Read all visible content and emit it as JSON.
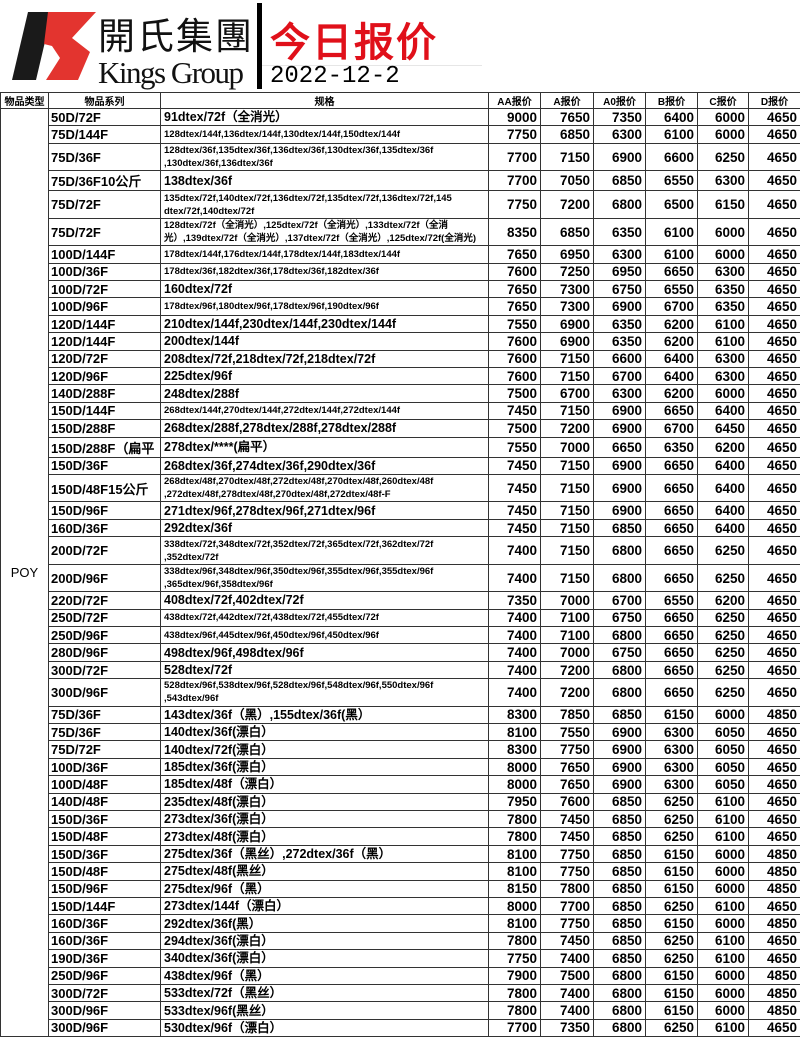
{
  "header": {
    "company_cn": "開氏集團",
    "company_en": "Kings Group",
    "title": "今日报价",
    "date": "2022-12-2",
    "logo_colors": {
      "black": "#1a1a1a",
      "red": "#e3342f"
    },
    "title_color": "#e0101a"
  },
  "table": {
    "columns": [
      "物品类型",
      "物品系列",
      "规格",
      "AA报价",
      "A报价",
      "A0报价",
      "B报价",
      "C报价",
      "D报价"
    ],
    "type": "POY",
    "rows": [
      {
        "series": "50D/72F",
        "spec": [
          "91dtex/72f（全消光）"
        ],
        "prices": [
          "9000",
          "7650",
          "7350",
          "6400",
          "6000",
          "4650"
        ]
      },
      {
        "series": "75D/144F",
        "spec": [
          "128dtex/144f,136dtex/144f,130dtex/144f,150dtex/144f"
        ],
        "prices": [
          "7750",
          "6850",
          "6300",
          "6100",
          "6000",
          "4650"
        ]
      },
      {
        "series": "75D/36F",
        "spec": [
          "128dtex/36f,135dtex/36f,136dtex/36f,130dtex/36f,135dtex/36f",
          ",130dtex/36f,136dtex/36f"
        ],
        "prices": [
          "7700",
          "7150",
          "6900",
          "6600",
          "6250",
          "4650"
        ]
      },
      {
        "series": "75D/36F10公斤",
        "spec": [
          "138dtex/36f"
        ],
        "prices": [
          "7700",
          "7050",
          "6850",
          "6550",
          "6300",
          "4650"
        ]
      },
      {
        "series": "75D/72F",
        "spec": [
          "135dtex/72f,140dtex/72f,136dtex/72f,135dtex/72f,136dtex/72f,145",
          "dtex/72f,140dtex/72f"
        ],
        "prices": [
          "7750",
          "7200",
          "6800",
          "6500",
          "6150",
          "4650"
        ]
      },
      {
        "series": "75D/72F",
        "spec": [
          "128dtex/72f（全消光）,125dtex/72f（全消光）,133dtex/72f（全消",
          "光）,139dtex/72f（全消光）,137dtex/72f（全消光）,125dtex/72f(全消光)"
        ],
        "prices": [
          "8350",
          "6850",
          "6350",
          "6100",
          "6000",
          "4650"
        ]
      },
      {
        "series": "100D/144F",
        "spec": [
          "178dtex/144f,176dtex/144f,178dtex/144f,183dtex/144f"
        ],
        "prices": [
          "7650",
          "6950",
          "6300",
          "6100",
          "6000",
          "4650"
        ]
      },
      {
        "series": "100D/36F",
        "spec": [
          "178dtex/36f,182dtex/36f,178dtex/36f,182dtex/36f"
        ],
        "prices": [
          "7600",
          "7250",
          "6950",
          "6650",
          "6300",
          "4650"
        ]
      },
      {
        "series": "100D/72F",
        "spec": [
          "160dtex/72f"
        ],
        "prices": [
          "7650",
          "7300",
          "6750",
          "6550",
          "6350",
          "4650"
        ]
      },
      {
        "series": "100D/96F",
        "spec": [
          "178dtex/96f,180dtex/96f,178dtex/96f,190dtex/96f"
        ],
        "prices": [
          "7650",
          "7300",
          "6900",
          "6700",
          "6350",
          "4650"
        ]
      },
      {
        "series": "120D/144F",
        "spec": [
          "210dtex/144f,230dtex/144f,230dtex/144f"
        ],
        "prices": [
          "7550",
          "6900",
          "6350",
          "6200",
          "6100",
          "4650"
        ]
      },
      {
        "series": "120D/144F",
        "spec": [
          "200dtex/144f"
        ],
        "prices": [
          "7600",
          "6900",
          "6350",
          "6200",
          "6100",
          "4650"
        ]
      },
      {
        "series": "120D/72F",
        "spec": [
          "208dtex/72f,218dtex/72f,218dtex/72f"
        ],
        "prices": [
          "7600",
          "7150",
          "6600",
          "6400",
          "6300",
          "4650"
        ]
      },
      {
        "series": "120D/96F",
        "spec": [
          "225dtex/96f"
        ],
        "prices": [
          "7600",
          "7150",
          "6700",
          "6400",
          "6300",
          "4650"
        ]
      },
      {
        "series": "140D/288F",
        "spec": [
          "248dtex/288f"
        ],
        "prices": [
          "7500",
          "6700",
          "6300",
          "6200",
          "6000",
          "4650"
        ]
      },
      {
        "series": "150D/144F",
        "spec": [
          "268dtex/144f,270dtex/144f,272dtex/144f,272dtex/144f"
        ],
        "prices": [
          "7450",
          "7150",
          "6900",
          "6650",
          "6400",
          "4650"
        ]
      },
      {
        "series": "150D/288F",
        "spec": [
          "268dtex/288f,278dtex/288f,278dtex/288f"
        ],
        "prices": [
          "7500",
          "7200",
          "6900",
          "6700",
          "6450",
          "4650"
        ]
      },
      {
        "series": "150D/288F（扁平",
        "spec": [
          "278dtex/****(扁平）"
        ],
        "prices": [
          "7550",
          "7000",
          "6650",
          "6350",
          "6200",
          "4650"
        ]
      },
      {
        "series": "150D/36F",
        "spec": [
          "268dtex/36f,274dtex/36f,290dtex/36f"
        ],
        "prices": [
          "7450",
          "7150",
          "6900",
          "6650",
          "6400",
          "4650"
        ]
      },
      {
        "series": "150D/48F15公斤",
        "spec": [
          "268dtex/48f,270dtex/48f,272dtex/48f,270dtex/48f,260dtex/48f",
          ",272dtex/48f,278dtex/48f,270dtex/48f,272dtex/48f-F"
        ],
        "prices": [
          "7450",
          "7150",
          "6900",
          "6650",
          "6400",
          "4650"
        ]
      },
      {
        "series": "150D/96F",
        "spec": [
          "271dtex/96f,278dtex/96f,271dtex/96f"
        ],
        "prices": [
          "7450",
          "7150",
          "6900",
          "6650",
          "6400",
          "4650"
        ]
      },
      {
        "series": "160D/36F",
        "spec": [
          "292dtex/36f"
        ],
        "prices": [
          "7450",
          "7150",
          "6850",
          "6650",
          "6400",
          "4650"
        ]
      },
      {
        "series": "200D/72F",
        "spec": [
          "338dtex/72f,348dtex/72f,352dtex/72f,365dtex/72f,362dtex/72f",
          ",352dtex/72f"
        ],
        "prices": [
          "7400",
          "7150",
          "6800",
          "6650",
          "6250",
          "4650"
        ]
      },
      {
        "series": "200D/96F",
        "spec": [
          "338dtex/96f,348dtex/96f,350dtex/96f,355dtex/96f,355dtex/96f",
          ",365dtex/96f,358dtex/96f"
        ],
        "prices": [
          "7400",
          "7150",
          "6800",
          "6650",
          "6250",
          "4650"
        ]
      },
      {
        "series": "220D/72F",
        "spec": [
          "408dtex/72f,402dtex/72f"
        ],
        "prices": [
          "7350",
          "7000",
          "6700",
          "6550",
          "6200",
          "4650"
        ]
      },
      {
        "series": "250D/72F",
        "spec": [
          "438dtex/72f,442dtex/72f,438dtex/72f,455dtex/72f"
        ],
        "prices": [
          "7400",
          "7100",
          "6750",
          "6650",
          "6250",
          "4650"
        ]
      },
      {
        "series": "250D/96F",
        "spec": [
          "438dtex/96f,445dtex/96f,450dtex/96f,450dtex/96f"
        ],
        "prices": [
          "7400",
          "7100",
          "6800",
          "6650",
          "6250",
          "4650"
        ]
      },
      {
        "series": "280D/96F",
        "spec": [
          "498dtex/96f,498dtex/96f"
        ],
        "prices": [
          "7400",
          "7000",
          "6750",
          "6650",
          "6250",
          "4650"
        ]
      },
      {
        "series": "300D/72F",
        "spec": [
          "528dtex/72f"
        ],
        "prices": [
          "7400",
          "7200",
          "6800",
          "6650",
          "6250",
          "4650"
        ]
      },
      {
        "series": "300D/96F",
        "spec": [
          "528dtex/96f,538dtex/96f,528dtex/96f,548dtex/96f,550dtex/96f",
          ",543dtex/96f"
        ],
        "prices": [
          "7400",
          "7200",
          "6800",
          "6650",
          "6250",
          "4650"
        ]
      },
      {
        "series": "75D/36F",
        "spec": [
          "143dtex/36f（黑）,155dtex/36f(黑）"
        ],
        "prices": [
          "8300",
          "7850",
          "6850",
          "6150",
          "6000",
          "4850"
        ]
      },
      {
        "series": "75D/36F",
        "spec": [
          "140dtex/36f(漂白）"
        ],
        "prices": [
          "8100",
          "7550",
          "6900",
          "6300",
          "6050",
          "4650"
        ]
      },
      {
        "series": "75D/72F",
        "spec": [
          "140dtex/72f(漂白）"
        ],
        "prices": [
          "8300",
          "7750",
          "6900",
          "6300",
          "6050",
          "4650"
        ]
      },
      {
        "series": "100D/36F",
        "spec": [
          "185dtex/36f(漂白）"
        ],
        "prices": [
          "8000",
          "7650",
          "6900",
          "6300",
          "6050",
          "4650"
        ]
      },
      {
        "series": "100D/48F",
        "spec": [
          "185dtex/48f（漂白）"
        ],
        "prices": [
          "8000",
          "7650",
          "6900",
          "6300",
          "6050",
          "4650"
        ]
      },
      {
        "series": "140D/48F",
        "spec": [
          "235dtex/48f(漂白）"
        ],
        "prices": [
          "7950",
          "7600",
          "6850",
          "6250",
          "6100",
          "4650"
        ]
      },
      {
        "series": "150D/36F",
        "spec": [
          "273dtex/36f(漂白）"
        ],
        "prices": [
          "7800",
          "7450",
          "6850",
          "6250",
          "6100",
          "4650"
        ]
      },
      {
        "series": "150D/48F",
        "spec": [
          "273dtex/48f(漂白）"
        ],
        "prices": [
          "7800",
          "7450",
          "6850",
          "6250",
          "6100",
          "4650"
        ]
      },
      {
        "series": "150D/36F",
        "spec": [
          "275dtex/36f（黑丝）,272dtex/36f（黑）"
        ],
        "prices": [
          "8100",
          "7750",
          "6850",
          "6150",
          "6000",
          "4850"
        ]
      },
      {
        "series": "150D/48F",
        "spec": [
          "275dtex/48f(黑丝）"
        ],
        "prices": [
          "8100",
          "7750",
          "6850",
          "6150",
          "6000",
          "4850"
        ]
      },
      {
        "series": "150D/96F",
        "spec": [
          "275dtex/96f（黑）"
        ],
        "prices": [
          "8150",
          "7800",
          "6850",
          "6150",
          "6000",
          "4850"
        ]
      },
      {
        "series": "150D/144F",
        "spec": [
          "273dtex/144f（漂白）"
        ],
        "prices": [
          "8000",
          "7700",
          "6850",
          "6250",
          "6100",
          "4650"
        ]
      },
      {
        "series": "160D/36F",
        "spec": [
          "292dtex/36f(黑）"
        ],
        "prices": [
          "8100",
          "7750",
          "6850",
          "6150",
          "6000",
          "4850"
        ]
      },
      {
        "series": "160D/36F",
        "spec": [
          "294dtex/36f(漂白）"
        ],
        "prices": [
          "7800",
          "7450",
          "6850",
          "6250",
          "6100",
          "4650"
        ]
      },
      {
        "series": "190D/36F",
        "spec": [
          "340dtex/36f(漂白）"
        ],
        "prices": [
          "7750",
          "7400",
          "6850",
          "6250",
          "6100",
          "4650"
        ]
      },
      {
        "series": "250D/96F",
        "spec": [
          "438dtex/96f（黑）"
        ],
        "prices": [
          "7900",
          "7500",
          "6800",
          "6150",
          "6000",
          "4850"
        ]
      },
      {
        "series": "300D/72F",
        "spec": [
          "533dtex/72f（黑丝）"
        ],
        "prices": [
          "7800",
          "7400",
          "6800",
          "6150",
          "6000",
          "4850"
        ]
      },
      {
        "series": "300D/96F",
        "spec": [
          "533dtex/96f(黑丝）"
        ],
        "prices": [
          "7800",
          "7400",
          "6800",
          "6150",
          "6000",
          "4850"
        ]
      },
      {
        "series": "300D/96F",
        "spec": [
          "530dtex/96f（漂白）"
        ],
        "prices": [
          "7700",
          "7350",
          "6800",
          "6250",
          "6100",
          "4650"
        ]
      }
    ]
  }
}
